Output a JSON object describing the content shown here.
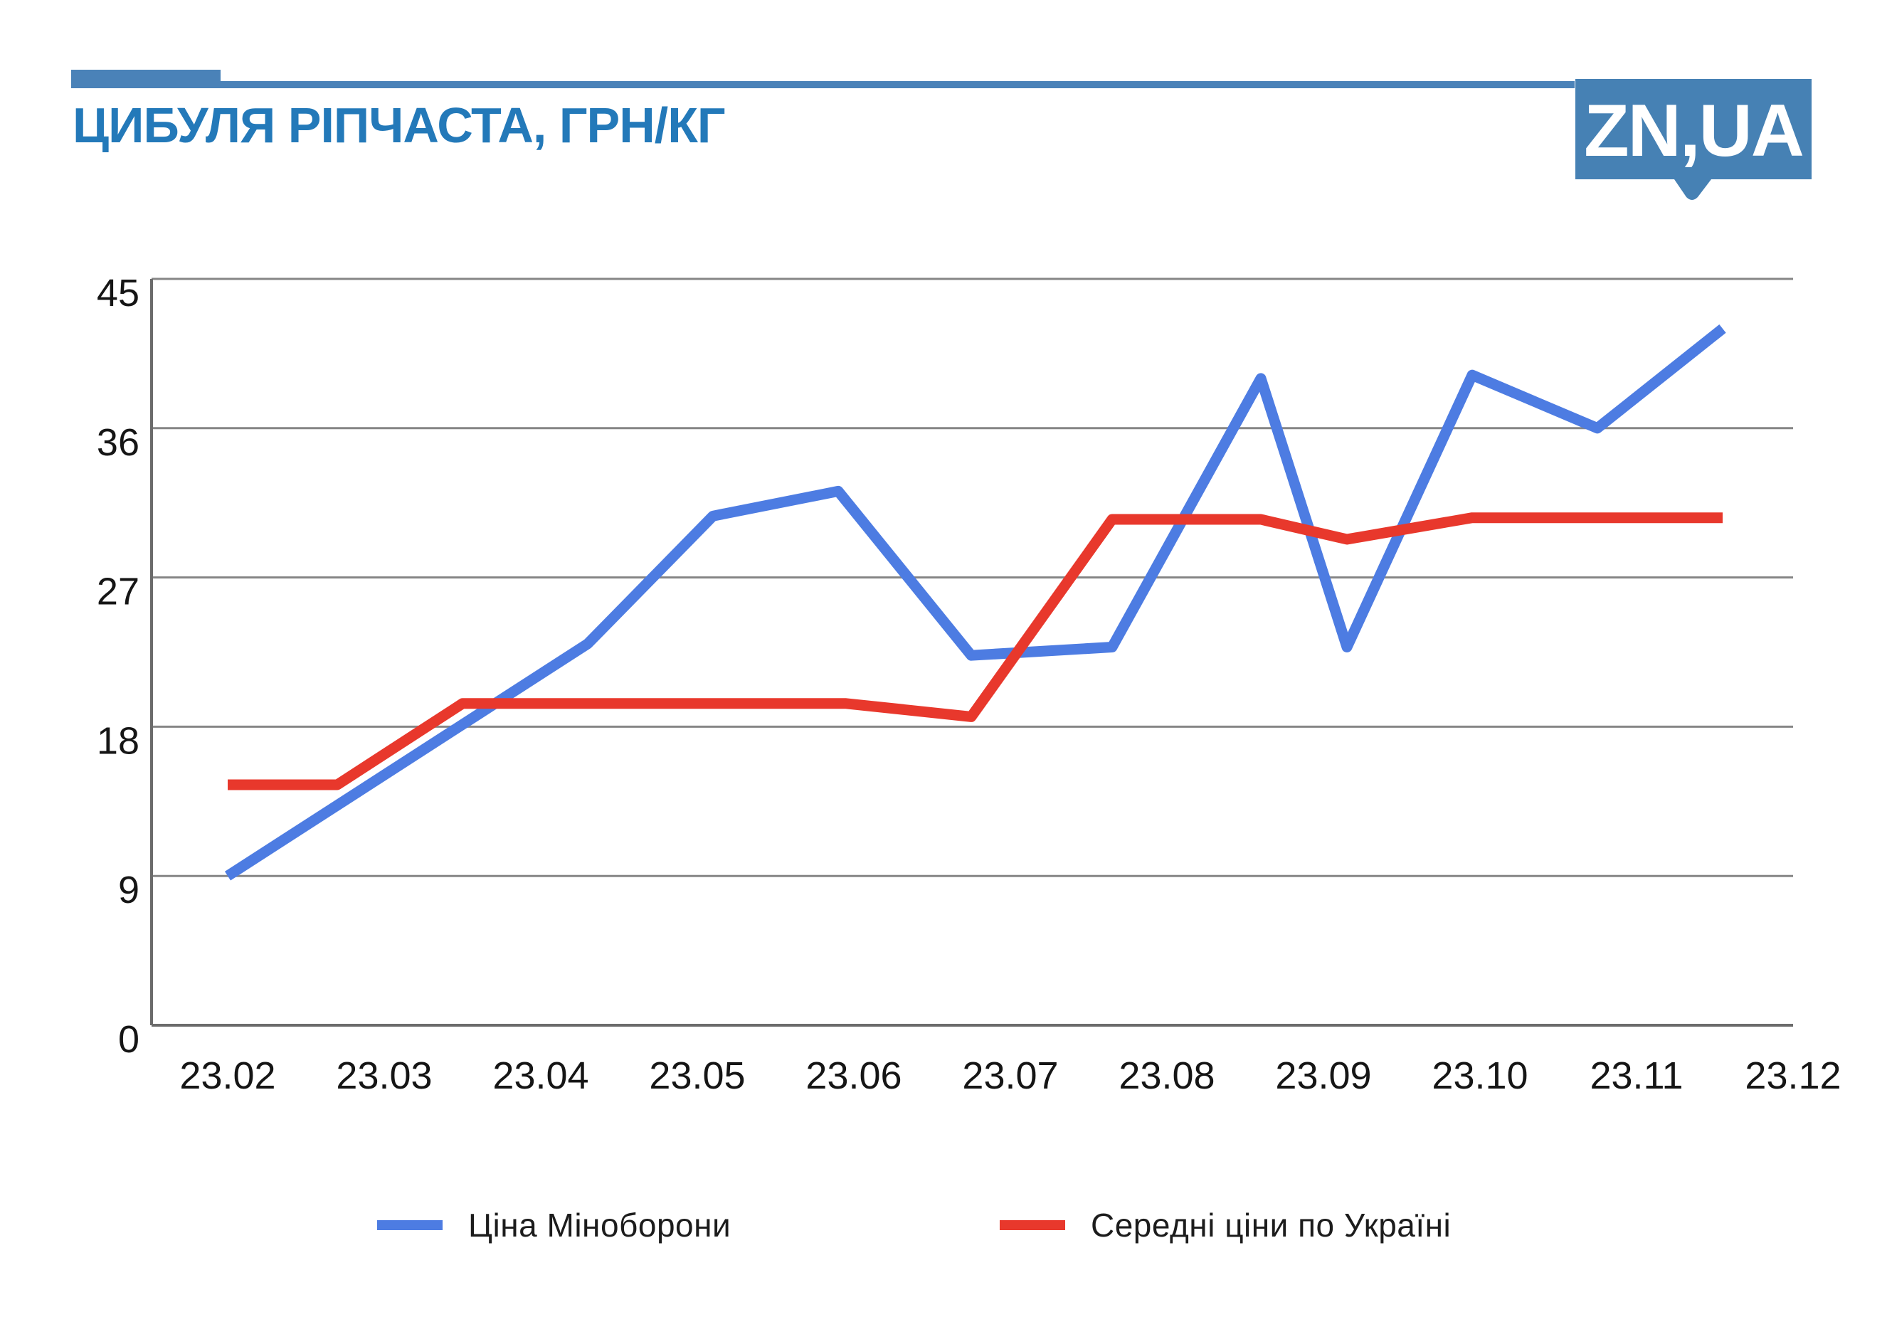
{
  "title": "ЦИБУЛЯ РІПЧАСТА, ГРН/КГ",
  "logo": {
    "text": "ZN,UA"
  },
  "colors": {
    "brand_blue": "#4a82b8",
    "title_blue": "#2379b9",
    "logo_bg": "#4681b4",
    "gridline": "#868686",
    "axis": "#6b6b6b",
    "tick_text": "#151515"
  },
  "chart_data": {
    "type": "line",
    "title": "ЦИБУЛЯ РІПЧАСТА, ГРН/КГ",
    "xlabel": "",
    "ylabel": "",
    "ylim": [
      0,
      45
    ],
    "yticks": [
      0,
      9,
      18,
      27,
      36,
      45
    ],
    "x_tick_labels": [
      "23.02",
      "23.03",
      "23.04",
      "23.05",
      "23.06",
      "23.07",
      "23.08",
      "23.09",
      "23.10",
      "23.11",
      "23.12"
    ],
    "grid": "horizontal",
    "legend_position": "bottom",
    "series": [
      {
        "name": "Ціна Міноборони",
        "color": "#4d7ce2",
        "points": [
          [
            0,
            9
          ],
          [
            2.3,
            23
          ],
          [
            3.1,
            30.7
          ],
          [
            3.9,
            32.2
          ],
          [
            4.75,
            22.3
          ],
          [
            5.65,
            22.8
          ],
          [
            6.6,
            39
          ],
          [
            7.15,
            22.8
          ],
          [
            7.95,
            39.2
          ],
          [
            8.75,
            36
          ],
          [
            9.55,
            42
          ]
        ]
      },
      {
        "name": "Середні ціни по Україні",
        "color": "#e8382c",
        "points": [
          [
            0,
            14.5
          ],
          [
            0.7,
            14.5
          ],
          [
            1.5,
            19.4
          ],
          [
            3.95,
            19.4
          ],
          [
            4.75,
            18.6
          ],
          [
            5.65,
            30.5
          ],
          [
            6.6,
            30.5
          ],
          [
            7.15,
            29.3
          ],
          [
            7.95,
            30.6
          ],
          [
            9.55,
            30.6
          ]
        ]
      }
    ]
  },
  "legend": {
    "items": [
      {
        "label": "Ціна Міноборони",
        "color": "#4d7ce2"
      },
      {
        "label": "Середні ціни по Україні",
        "color": "#e8382c"
      }
    ]
  }
}
